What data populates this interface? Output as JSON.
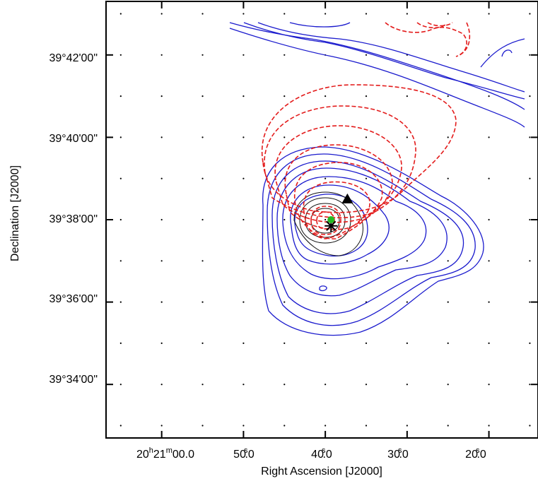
{
  "chart_data": {
    "type": "contour",
    "title": "",
    "xlabel": "Right Ascension [J2000]",
    "ylabel": "Declination [J2000]",
    "xlim_ra_seconds": [
      66.8,
      14.0
    ],
    "ylim_dec_minutes": [
      32.7,
      43.3
    ],
    "grid": "dotted",
    "x_ticks": [
      {
        "value": 60,
        "label": "20h21m00.0"
      },
      {
        "value": 50,
        "label": "50.0s"
      },
      {
        "value": 40,
        "label": "40.0s"
      },
      {
        "value": 30,
        "label": "30.0s"
      },
      {
        "value": 20,
        "label": "20.0s"
      }
    ],
    "x_tick_labels_parts": [
      {
        "main": "20",
        "h": "h",
        "mid": "21",
        "m": "m",
        "rest": "00.0"
      },
      {
        "main": "50",
        "sup": "s",
        "rest": "0"
      },
      {
        "main": "40",
        "sup": "s",
        "rest": "0"
      },
      {
        "main": "30",
        "sup": "s",
        "rest": "0"
      },
      {
        "main": "20",
        "sup": "s",
        "rest": "0"
      }
    ],
    "y_ticks": [
      {
        "value": 42,
        "label": "39°42'00\""
      },
      {
        "value": 40,
        "label": "39°40'00\""
      },
      {
        "value": 38,
        "label": "39°38'00\""
      },
      {
        "value": 36,
        "label": "39°36'00\""
      },
      {
        "value": 34,
        "label": "39°34'00\""
      }
    ],
    "series": [
      {
        "style": "solid",
        "color": "#1a1acd"
      },
      {
        "style": "dashed",
        "color": "#e31b1b"
      },
      {
        "style": "solid",
        "color": "#111111"
      }
    ],
    "markers": [
      {
        "shape": "star",
        "color": "#000000",
        "ra_s": 39.3,
        "dec_m": 37.85
      },
      {
        "shape": "triangle",
        "color": "#000000",
        "ra_s": 37.3,
        "dec_m": 38.5
      },
      {
        "shape": "circle",
        "color": "#22bb22",
        "ra_s": 39.3,
        "dec_m": 38.0
      }
    ]
  }
}
